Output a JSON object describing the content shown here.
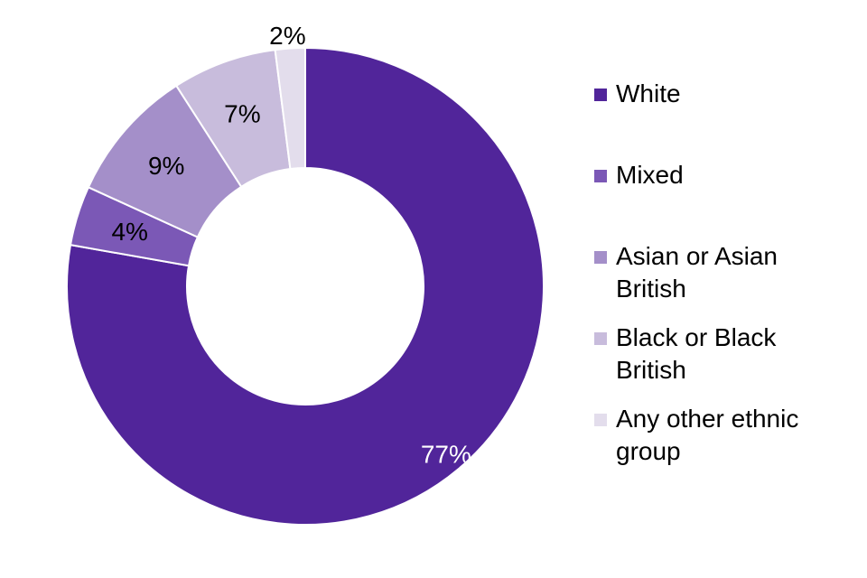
{
  "chart_data": {
    "type": "pie",
    "title": "",
    "categories": [
      "White",
      "Mixed",
      "Asian or Asian British",
      "Black or Black British",
      "Any other ethnic group"
    ],
    "values": [
      77,
      4,
      9,
      7,
      2
    ],
    "value_labels": [
      "77%",
      "4%",
      "9%",
      "7%",
      "2%"
    ],
    "colors": [
      "#51259A",
      "#7B58B6",
      "#A48FC9",
      "#C8BCDC",
      "#E3DDEC"
    ],
    "label_colors": [
      "#ffffff",
      "#000000",
      "#000000",
      "#000000",
      "#000000"
    ],
    "donut": true,
    "legend_placement": "right"
  }
}
